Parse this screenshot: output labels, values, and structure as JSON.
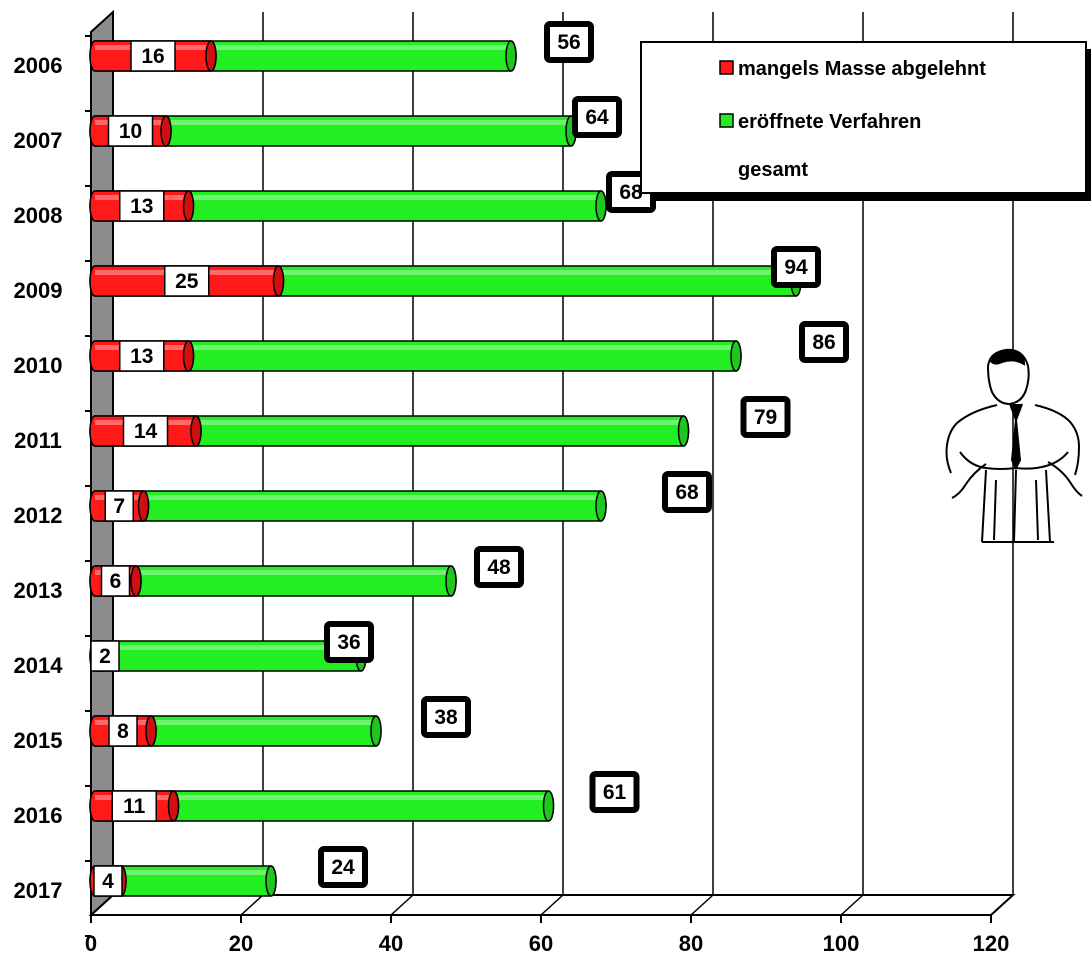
{
  "chart_data": {
    "type": "bar",
    "orientation": "horizontal",
    "stacked": true,
    "categories": [
      "2006",
      "2007",
      "2008",
      "2009",
      "2010",
      "2011",
      "2012",
      "2013",
      "2014",
      "2015",
      "2016",
      "2017"
    ],
    "series": [
      {
        "name": "mangels Masse abgelehnt",
        "color": "#ff1a1a",
        "values": [
          16,
          10,
          13,
          25,
          13,
          14,
          7,
          6,
          2,
          8,
          11,
          4
        ]
      },
      {
        "name": "eröffnete Verfahren",
        "color": "#22ee22",
        "values": [
          40,
          54,
          55,
          69,
          73,
          65,
          61,
          42,
          34,
          30,
          50,
          20
        ]
      }
    ],
    "totals": {
      "name": "gesamt",
      "values": [
        56,
        64,
        68,
        94,
        86,
        79,
        68,
        48,
        36,
        38,
        61,
        24
      ]
    },
    "xlim": [
      0,
      120
    ],
    "xticks": [
      "0",
      "20",
      "40",
      "60",
      "80",
      "100",
      "120"
    ],
    "grid": true,
    "legend_position": "top-right",
    "decoration_icon": "man-with-empty-pockets-icon"
  }
}
